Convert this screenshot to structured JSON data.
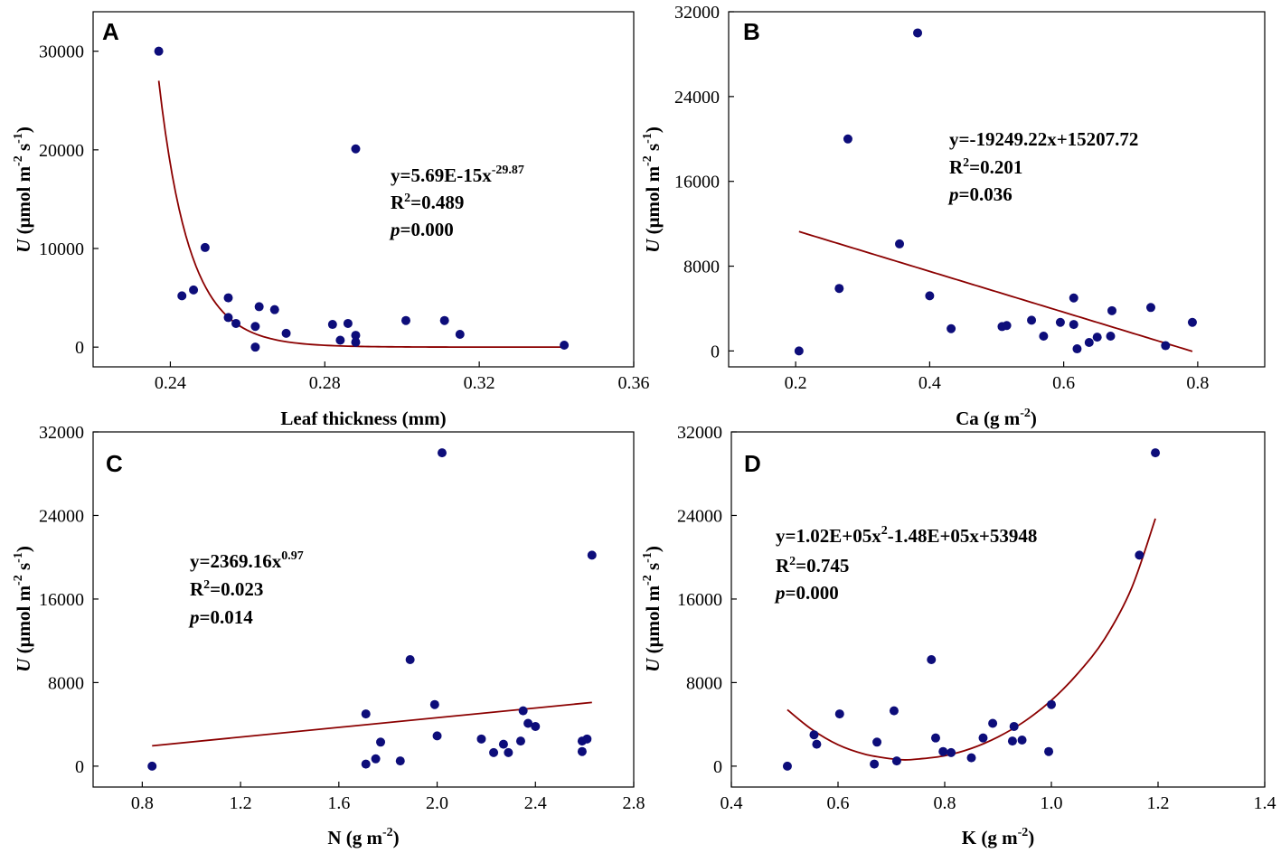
{
  "colors": {
    "points": "#0d0d7a",
    "fit": "#8b0000",
    "axis": "#000000"
  },
  "ylabel": {
    "italic": "U",
    "prefix": " (μmol m",
    "e1": "-2",
    "mid": " s",
    "e2": "-1",
    "suffix": ")"
  },
  "chart_data": [
    {
      "panel": "A",
      "type": "scatter",
      "title": "",
      "xlabel": "Leaf thickness (mm)",
      "ylabel": "U (μmol m-2 s-1)",
      "xlim": [
        0.22,
        0.36
      ],
      "ylim": [
        -2000,
        34000
      ],
      "xticks": [
        0.24,
        0.28,
        0.32,
        0.36
      ],
      "xtick_labels": [
        "0.24",
        "0.28",
        "0.32",
        "0.36"
      ],
      "yticks": [
        0,
        10000,
        20000,
        30000
      ],
      "ytick_labels": [
        "0",
        "10000",
        "20000",
        "30000"
      ],
      "points": [
        [
          0.237,
          30000
        ],
        [
          0.243,
          5200
        ],
        [
          0.246,
          5800
        ],
        [
          0.249,
          10100
        ],
        [
          0.255,
          5000
        ],
        [
          0.255,
          3000
        ],
        [
          0.257,
          2400
        ],
        [
          0.262,
          2100
        ],
        [
          0.262,
          0
        ],
        [
          0.263,
          4100
        ],
        [
          0.267,
          3800
        ],
        [
          0.27,
          1400
        ],
        [
          0.282,
          2300
        ],
        [
          0.284,
          700
        ],
        [
          0.286,
          2400
        ],
        [
          0.288,
          1200
        ],
        [
          0.288,
          500
        ],
        [
          0.288,
          20100
        ],
        [
          0.301,
          2700
        ],
        [
          0.311,
          2700
        ],
        [
          0.315,
          1300
        ],
        [
          0.342,
          200
        ]
      ],
      "fit": {
        "model": "power",
        "a": 5.69e-15,
        "b": -29.87,
        "x_range": [
          0.237,
          0.342
        ]
      },
      "equation": {
        "base": "y=5.69E-15x",
        "sup": "-29.87",
        "r2_value": "=0.489",
        "p_value": "=0.000"
      }
    },
    {
      "panel": "B",
      "type": "scatter",
      "title": "",
      "xlabel": "Ca (g m-2)",
      "ylabel": "U (μmol m-2 s-1)",
      "xlim": [
        0.1,
        0.9
      ],
      "ylim": [
        -1500,
        32000
      ],
      "xticks": [
        0.2,
        0.4,
        0.6,
        0.8
      ],
      "xtick_labels": [
        "0.2",
        "0.4",
        "0.6",
        "0.8"
      ],
      "yticks": [
        0,
        8000,
        16000,
        24000,
        32000
      ],
      "ytick_labels": [
        "0",
        "8000",
        "16000",
        "24000",
        "32000"
      ],
      "points": [
        [
          0.205,
          0
        ],
        [
          0.265,
          5900
        ],
        [
          0.278,
          20000
        ],
        [
          0.355,
          10100
        ],
        [
          0.382,
          30000
        ],
        [
          0.4,
          5200
        ],
        [
          0.432,
          2100
        ],
        [
          0.508,
          2300
        ],
        [
          0.515,
          2400
        ],
        [
          0.552,
          2900
        ],
        [
          0.57,
          1400
        ],
        [
          0.595,
          2700
        ],
        [
          0.615,
          5000
        ],
        [
          0.615,
          2500
        ],
        [
          0.62,
          200
        ],
        [
          0.638,
          800
        ],
        [
          0.65,
          1300
        ],
        [
          0.67,
          1400
        ],
        [
          0.672,
          3800
        ],
        [
          0.73,
          4100
        ],
        [
          0.752,
          500
        ],
        [
          0.792,
          2700
        ]
      ],
      "fit": {
        "model": "linear",
        "slope": -19249.22,
        "intercept": 15207.72,
        "x_range": [
          0.205,
          0.792
        ]
      },
      "equation": {
        "base": "y=-19249.22x+15207.72",
        "sup": "",
        "r2_value": "=0.201",
        "p_value": "=0.036"
      }
    },
    {
      "panel": "C",
      "type": "scatter",
      "title": "",
      "xlabel": "N (g m-2)",
      "ylabel": "U (μmol m-2 s-1)",
      "xlim": [
        0.6,
        2.8
      ],
      "ylim": [
        -2000,
        32000
      ],
      "xticks": [
        0.8,
        1.2,
        1.6,
        2.0,
        2.4,
        2.8
      ],
      "xtick_labels": [
        "0.8",
        "1.2",
        "1.6",
        "2.0",
        "2.4",
        "2.8"
      ],
      "yticks": [
        0,
        8000,
        16000,
        24000,
        32000
      ],
      "ytick_labels": [
        "0",
        "8000",
        "16000",
        "24000",
        "32000"
      ],
      "points": [
        [
          0.84,
          0
        ],
        [
          1.71,
          5000
        ],
        [
          1.71,
          200
        ],
        [
          1.75,
          700
        ],
        [
          1.77,
          2300
        ],
        [
          1.85,
          500
        ],
        [
          1.89,
          10200
        ],
        [
          1.99,
          5900
        ],
        [
          2.0,
          2900
        ],
        [
          2.02,
          30000
        ],
        [
          2.18,
          2600
        ],
        [
          2.23,
          1300
        ],
        [
          2.27,
          2100
        ],
        [
          2.29,
          1300
        ],
        [
          2.34,
          2400
        ],
        [
          2.35,
          5300
        ],
        [
          2.37,
          4100
        ],
        [
          2.4,
          3800
        ],
        [
          2.59,
          2400
        ],
        [
          2.59,
          1400
        ],
        [
          2.61,
          2600
        ],
        [
          2.63,
          20200
        ]
      ],
      "fit": {
        "model": "power",
        "a": 2369.16,
        "b": 0.97,
        "x_range": [
          0.84,
          2.63
        ],
        "drawn_line": [
          [
            0.84,
            1950
          ],
          [
            2.63,
            6100
          ]
        ]
      },
      "equation": {
        "base": "y=2369.16x",
        "sup": "0.97",
        "r2_value": "=0.023",
        "p_value": "=0.014"
      }
    },
    {
      "panel": "D",
      "type": "scatter",
      "title": "",
      "xlabel": "K (g m-2)",
      "ylabel": "U (μmol m-2 s-1)",
      "xlim": [
        0.4,
        1.4
      ],
      "ylim": [
        -2000,
        32000
      ],
      "xticks": [
        0.4,
        0.6,
        0.8,
        1.0,
        1.2,
        1.4
      ],
      "xtick_labels": [
        "0.4",
        "0.6",
        "0.8",
        "1.0",
        "1.2",
        "1.4"
      ],
      "yticks": [
        0,
        8000,
        16000,
        24000,
        32000
      ],
      "ytick_labels": [
        "0",
        "8000",
        "16000",
        "24000",
        "32000"
      ],
      "points": [
        [
          0.505,
          0
        ],
        [
          0.555,
          3000
        ],
        [
          0.56,
          2100
        ],
        [
          0.603,
          5000
        ],
        [
          0.668,
          200
        ],
        [
          0.673,
          2300
        ],
        [
          0.705,
          5300
        ],
        [
          0.71,
          500
        ],
        [
          0.775,
          10200
        ],
        [
          0.783,
          2700
        ],
        [
          0.797,
          1400
        ],
        [
          0.812,
          1300
        ],
        [
          0.85,
          800
        ],
        [
          0.872,
          2700
        ],
        [
          0.89,
          4100
        ],
        [
          0.927,
          2400
        ],
        [
          0.93,
          3800
        ],
        [
          0.945,
          2500
        ],
        [
          0.995,
          1400
        ],
        [
          1.0,
          5900
        ],
        [
          1.165,
          20200
        ],
        [
          1.195,
          30000
        ]
      ],
      "fit": {
        "model": "quadratic",
        "a": 102000,
        "b": -148000,
        "c": 53948,
        "x_range": [
          0.505,
          1.195
        ],
        "drawn_curve": [
          [
            0.505,
            5400
          ],
          [
            0.55,
            3550
          ],
          [
            0.6,
            2050
          ],
          [
            0.65,
            1150
          ],
          [
            0.7,
            700
          ],
          [
            0.725,
            600
          ],
          [
            0.75,
            680
          ],
          [
            0.8,
            1000
          ],
          [
            0.85,
            1700
          ],
          [
            0.9,
            2800
          ],
          [
            0.95,
            4300
          ],
          [
            1.0,
            6300
          ],
          [
            1.05,
            8900
          ],
          [
            1.1,
            12200
          ],
          [
            1.15,
            17000
          ],
          [
            1.195,
            23700
          ]
        ]
      },
      "equation": {
        "base": "y=1.02E+05x",
        "sup": "2",
        "rest": "-1.48E+05x+53948",
        "r2_value": "=0.745",
        "p_value": "=0.000"
      }
    }
  ]
}
